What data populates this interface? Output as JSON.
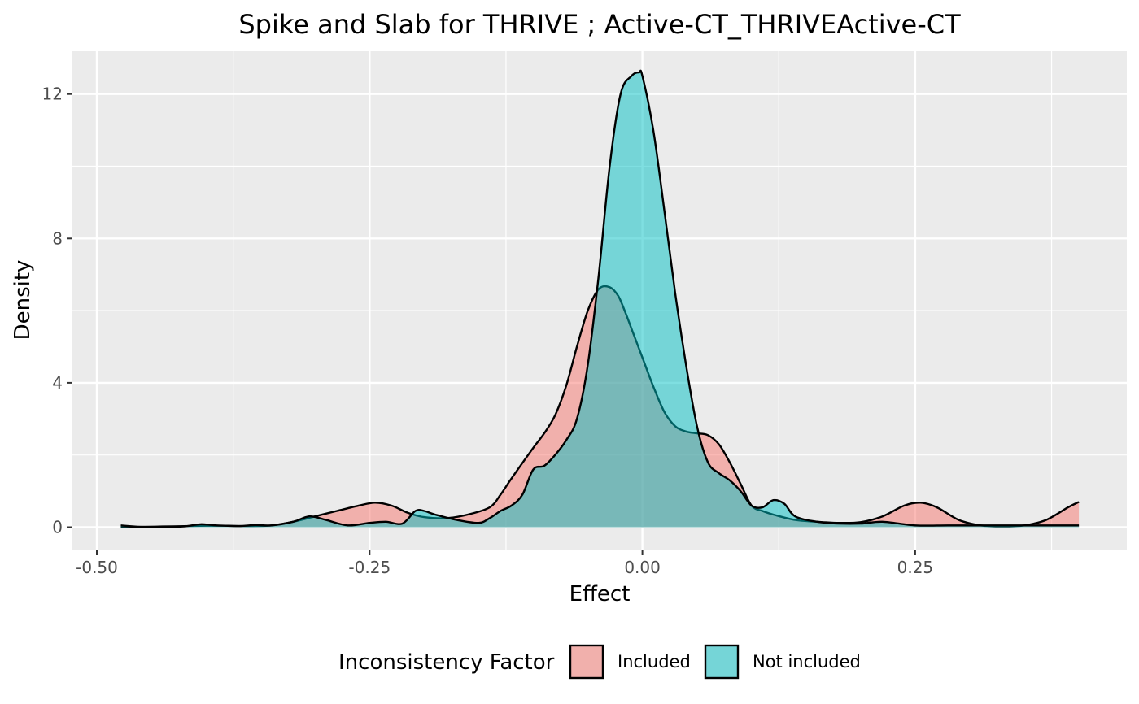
{
  "chart_data": {
    "type": "area",
    "title": "Spike and Slab for THRIVE ; Active-CT_THRIVEActive-CT",
    "xlabel": "Effect",
    "ylabel": "Density",
    "xlim": [
      -0.5,
      0.4
    ],
    "ylim": [
      0,
      12.6
    ],
    "x_ticks": [
      -0.5,
      -0.25,
      0.0,
      0.25
    ],
    "x_tick_labels": [
      "-0.50",
      "-0.25",
      "0.00",
      "0.25"
    ],
    "y_ticks": [
      0,
      4,
      8,
      12
    ],
    "y_tick_labels": [
      "0",
      "4",
      "8",
      "12"
    ],
    "grid": true,
    "legend": {
      "position": "bottom",
      "title": "Inconsistency Factor",
      "entries": [
        "Included",
        "Not included"
      ]
    },
    "series": [
      {
        "name": "Included",
        "color": "#F8766D",
        "x": [
          -0.478,
          -0.46,
          -0.44,
          -0.42,
          -0.4,
          -0.38,
          -0.36,
          -0.34,
          -0.32,
          -0.3,
          -0.28,
          -0.26,
          -0.245,
          -0.23,
          -0.215,
          -0.2,
          -0.18,
          -0.16,
          -0.14,
          -0.13,
          -0.12,
          -0.1,
          -0.09,
          -0.08,
          -0.07,
          -0.06,
          -0.05,
          -0.04,
          -0.03,
          -0.022,
          -0.015,
          -0.01,
          0.0,
          0.01,
          0.02,
          0.03,
          0.04,
          0.05,
          0.06,
          0.07,
          0.08,
          0.09,
          0.1,
          0.11,
          0.12,
          0.14,
          0.16,
          0.18,
          0.2,
          0.22,
          0.24,
          0.255,
          0.27,
          0.29,
          0.31,
          0.33,
          0.35,
          0.37,
          0.39,
          0.4
        ],
        "y": [
          0.01,
          0.01,
          0.02,
          0.03,
          0.04,
          0.04,
          0.03,
          0.05,
          0.15,
          0.3,
          0.45,
          0.6,
          0.68,
          0.6,
          0.4,
          0.28,
          0.25,
          0.35,
          0.55,
          0.9,
          1.35,
          2.2,
          2.6,
          3.1,
          3.9,
          5.0,
          6.0,
          6.6,
          6.65,
          6.4,
          5.9,
          5.5,
          4.7,
          3.9,
          3.2,
          2.8,
          2.65,
          2.6,
          2.55,
          2.3,
          1.8,
          1.2,
          0.6,
          0.45,
          0.35,
          0.2,
          0.15,
          0.12,
          0.14,
          0.3,
          0.6,
          0.68,
          0.55,
          0.2,
          0.05,
          0.02,
          0.05,
          0.2,
          0.55,
          0.7
        ]
      },
      {
        "name": "Not included",
        "color": "#00BFC4",
        "x": [
          -0.478,
          -0.46,
          -0.44,
          -0.42,
          -0.405,
          -0.39,
          -0.37,
          -0.355,
          -0.34,
          -0.32,
          -0.305,
          -0.29,
          -0.27,
          -0.25,
          -0.235,
          -0.22,
          -0.208,
          -0.2,
          -0.19,
          -0.17,
          -0.15,
          -0.14,
          -0.13,
          -0.12,
          -0.11,
          -0.1,
          -0.09,
          -0.08,
          -0.07,
          -0.06,
          -0.05,
          -0.04,
          -0.03,
          -0.02,
          -0.01,
          -0.003,
          0.0,
          0.01,
          0.02,
          0.03,
          0.04,
          0.05,
          0.06,
          0.07,
          0.08,
          0.09,
          0.1,
          0.11,
          0.12,
          0.13,
          0.14,
          0.16,
          0.18,
          0.2,
          0.22,
          0.25,
          0.28,
          0.31,
          0.34,
          0.37,
          0.4
        ],
        "y": [
          0.05,
          0.01,
          0.0,
          0.02,
          0.08,
          0.05,
          0.03,
          0.06,
          0.05,
          0.15,
          0.3,
          0.2,
          0.05,
          0.12,
          0.15,
          0.1,
          0.45,
          0.45,
          0.35,
          0.2,
          0.12,
          0.25,
          0.45,
          0.6,
          0.9,
          1.6,
          1.7,
          2.0,
          2.4,
          3.0,
          4.5,
          7.0,
          10.0,
          12.0,
          12.5,
          12.6,
          12.5,
          11.0,
          8.8,
          6.5,
          4.5,
          2.8,
          1.8,
          1.5,
          1.3,
          1.0,
          0.6,
          0.55,
          0.75,
          0.65,
          0.3,
          0.15,
          0.1,
          0.1,
          0.15,
          0.05,
          0.05,
          0.05,
          0.05,
          0.05,
          0.05
        ]
      }
    ]
  }
}
